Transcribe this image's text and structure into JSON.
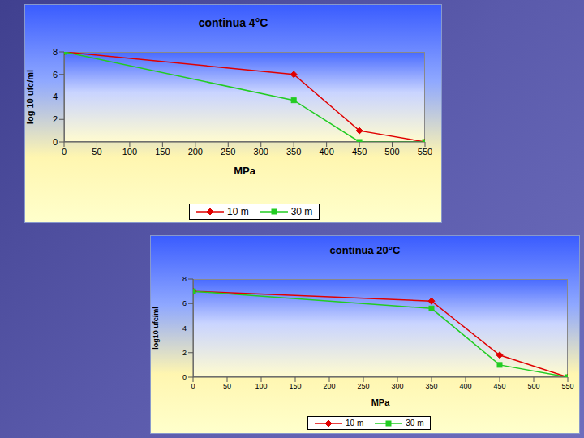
{
  "chart_data": [
    {
      "type": "line",
      "title": "continua 4°C",
      "x_label": "MPa",
      "y_label": "log 10 ufc/ml",
      "x": [
        0,
        350,
        450,
        550
      ],
      "series": [
        {
          "name": "10 m",
          "color": "#e00000",
          "marker": "diamond",
          "values": [
            8,
            6,
            1,
            0
          ]
        },
        {
          "name": "30 m",
          "color": "#22cc22",
          "marker": "square",
          "values": [
            8,
            3.7,
            0,
            0
          ]
        }
      ],
      "xlim": [
        0,
        550
      ],
      "xticks": [
        0,
        50,
        100,
        150,
        200,
        250,
        300,
        350,
        400,
        450,
        500,
        550
      ],
      "ylim": [
        0,
        8
      ],
      "yticks": [
        0,
        2,
        4,
        6,
        8
      ],
      "grid": false,
      "legend": "bottom"
    },
    {
      "type": "line",
      "title": "continua 20°C",
      "x_label": "MPa",
      "y_label": "log10 ufc/ml",
      "x": [
        0,
        350,
        450,
        550
      ],
      "series": [
        {
          "name": "10 m",
          "color": "#e00000",
          "marker": "diamond",
          "values": [
            7,
            6.2,
            1.8,
            0
          ]
        },
        {
          "name": "30 m",
          "color": "#22cc22",
          "marker": "square",
          "values": [
            7,
            5.6,
            1,
            0
          ]
        }
      ],
      "xlim": [
        0,
        550
      ],
      "xticks": [
        0,
        50,
        100,
        150,
        200,
        250,
        300,
        350,
        400,
        450,
        500,
        550
      ],
      "ylim": [
        0,
        8
      ],
      "yticks": [
        0,
        2,
        4,
        6,
        8
      ],
      "grid": false,
      "legend": "bottom"
    }
  ]
}
